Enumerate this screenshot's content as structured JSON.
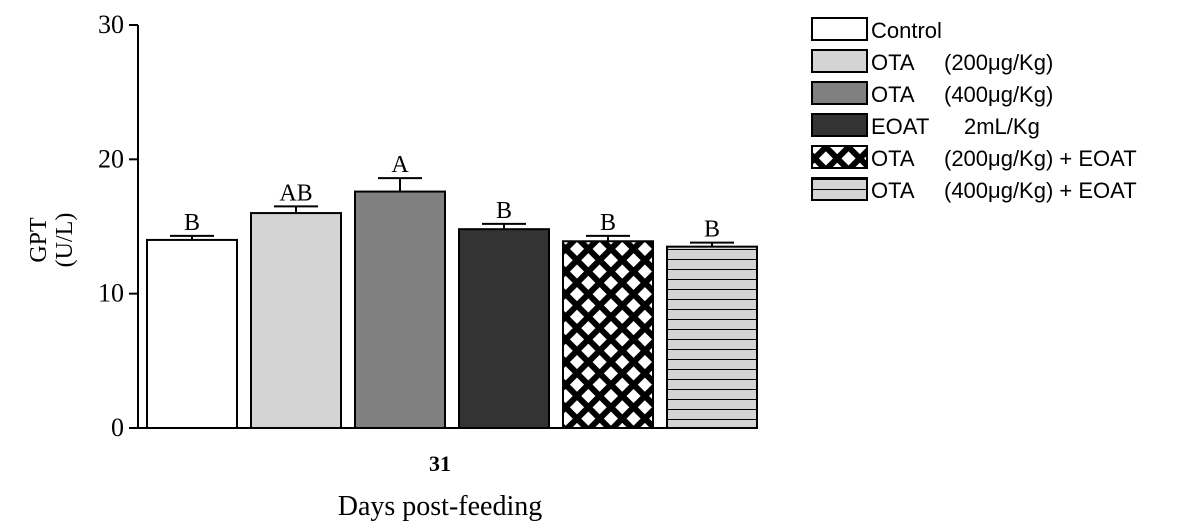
{
  "chart_data": {
    "type": "bar",
    "xlabel": "Days post-feeding",
    "ylabel_line1": "GPT",
    "ylabel_line2": "(U/L)",
    "ylim": [
      0,
      30
    ],
    "yticks": [
      "0",
      "10",
      "20",
      "30"
    ],
    "category": "31",
    "series": [
      {
        "name": "Control",
        "value": 14.0,
        "error": 0.3,
        "letter": "B",
        "fill": "#ffffff",
        "pattern": "none"
      },
      {
        "name": "OTA (200μg/Kg)",
        "value": 16.0,
        "error": 0.5,
        "letter": "AB",
        "fill": "#d4d4d4",
        "pattern": "none"
      },
      {
        "name": "OTA (400μg/Kg)",
        "value": 17.6,
        "error": 1.0,
        "letter": "A",
        "fill": "#808080",
        "pattern": "none"
      },
      {
        "name": "EOAT 2mL/Kg",
        "value": 14.8,
        "error": 0.4,
        "letter": "B",
        "fill": "#333333",
        "pattern": "none"
      },
      {
        "name": "OTA (200μg/Kg) + EOAT",
        "value": 13.9,
        "error": 0.4,
        "letter": "B",
        "fill": "#000000",
        "pattern": "crosshatch"
      },
      {
        "name": "OTA (400μg/Kg) + EOAT",
        "value": 13.5,
        "error": 0.3,
        "letter": "B",
        "fill": "#d4d4d4",
        "pattern": "hlines"
      }
    ],
    "legend": {
      "placement": "top-right",
      "entries": [
        {
          "name": "Control",
          "col1": "Control",
          "col2": ""
        },
        {
          "name": "OTA (200μg/Kg)",
          "col1": "OTA",
          "col2": "(200μg/Kg)"
        },
        {
          "name": "OTA (400μg/Kg)",
          "col1": "OTA",
          "col2": "(400μg/Kg)"
        },
        {
          "name": "EOAT 2mL/Kg",
          "col1": "EOAT",
          "col2": "2mL/Kg"
        },
        {
          "name": "OTA (200μg/Kg) + EOAT",
          "col1": "OTA",
          "col2": "(200μg/Kg) + EOAT"
        },
        {
          "name": "OTA (400μg/Kg) + EOAT",
          "col1": "OTA",
          "col2": "(400μg/Kg) + EOAT"
        }
      ]
    }
  }
}
